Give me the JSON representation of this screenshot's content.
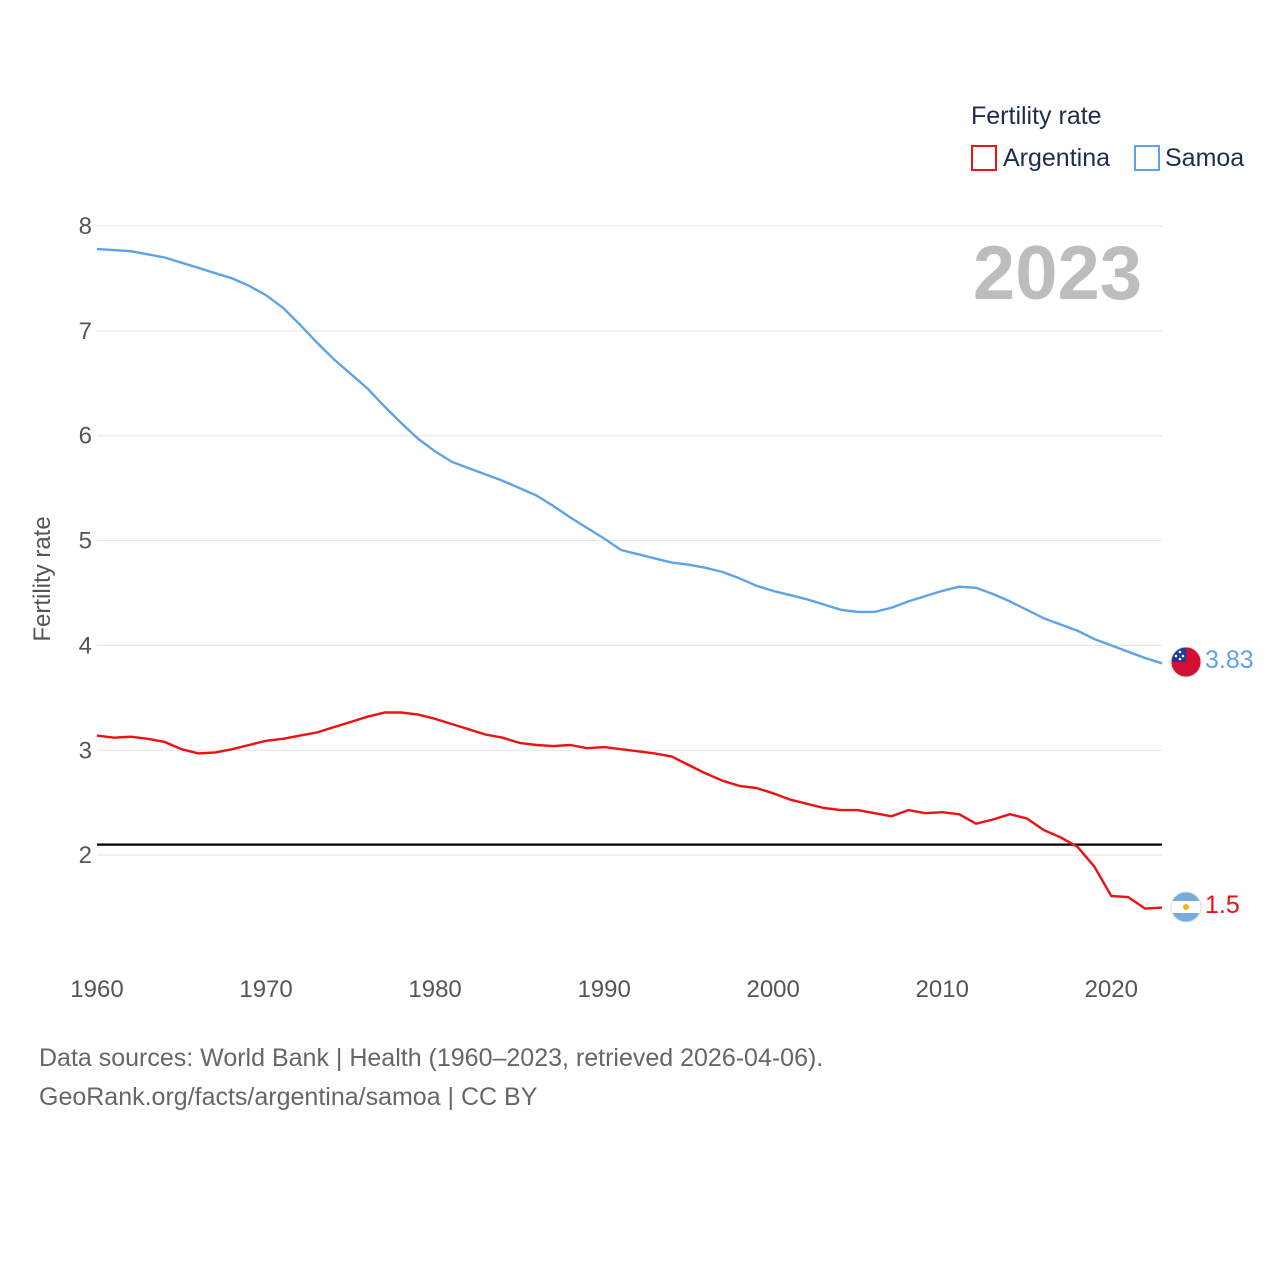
{
  "chart_data": {
    "type": "line",
    "title": "",
    "legend_title": "Fertility rate",
    "ylabel": "Fertility rate",
    "xlabel": "",
    "year_label": "2023",
    "xlim": [
      1960,
      2023
    ],
    "ylim": [
      1,
      8
    ],
    "y_ticks": [
      2,
      3,
      4,
      5,
      6,
      7,
      8
    ],
    "x_ticks": [
      1960,
      1970,
      1980,
      1990,
      2000,
      2010,
      2020
    ],
    "reference_line": {
      "value": 2.1,
      "color": "#000000"
    },
    "series": [
      {
        "name": "Argentina",
        "color": "#ee1111",
        "end_label": "1.5",
        "flag": "argentina-flag",
        "x": [
          1960,
          1961,
          1962,
          1963,
          1964,
          1965,
          1966,
          1967,
          1968,
          1969,
          1970,
          1971,
          1972,
          1973,
          1974,
          1975,
          1976,
          1977,
          1978,
          1979,
          1980,
          1981,
          1982,
          1983,
          1984,
          1985,
          1986,
          1987,
          1988,
          1989,
          1990,
          1991,
          1992,
          1993,
          1994,
          1995,
          1996,
          1997,
          1998,
          1999,
          2000,
          2001,
          2002,
          2003,
          2004,
          2005,
          2006,
          2007,
          2008,
          2009,
          2010,
          2011,
          2012,
          2013,
          2014,
          2015,
          2016,
          2017,
          2018,
          2019,
          2020,
          2021,
          2022,
          2023
        ],
        "values": [
          3.14,
          3.12,
          3.13,
          3.11,
          3.08,
          3.01,
          2.97,
          2.98,
          3.01,
          3.05,
          3.09,
          3.11,
          3.14,
          3.17,
          3.22,
          3.27,
          3.32,
          3.36,
          3.36,
          3.34,
          3.3,
          3.25,
          3.2,
          3.15,
          3.12,
          3.07,
          3.05,
          3.04,
          3.05,
          3.02,
          3.03,
          3.01,
          2.99,
          2.97,
          2.94,
          2.86,
          2.78,
          2.71,
          2.66,
          2.64,
          2.59,
          2.53,
          2.49,
          2.45,
          2.43,
          2.43,
          2.4,
          2.37,
          2.43,
          2.4,
          2.41,
          2.39,
          2.3,
          2.34,
          2.39,
          2.35,
          2.24,
          2.17,
          2.08,
          1.89,
          1.61,
          1.6,
          1.49,
          1.5
        ]
      },
      {
        "name": "Samoa",
        "color": "#5ea3e6",
        "end_label": "3.83",
        "flag": "samoa-flag",
        "x": [
          1960,
          1961,
          1962,
          1963,
          1964,
          1965,
          1966,
          1967,
          1968,
          1969,
          1970,
          1971,
          1972,
          1973,
          1974,
          1975,
          1976,
          1977,
          1978,
          1979,
          1980,
          1981,
          1982,
          1983,
          1984,
          1985,
          1986,
          1987,
          1988,
          1989,
          1990,
          1991,
          1992,
          1993,
          1994,
          1995,
          1996,
          1997,
          1998,
          1999,
          2000,
          2001,
          2002,
          2003,
          2004,
          2005,
          2006,
          2007,
          2008,
          2009,
          2010,
          2011,
          2012,
          2013,
          2014,
          2015,
          2016,
          2017,
          2018,
          2019,
          2020,
          2021,
          2022,
          2023
        ],
        "values": [
          7.78,
          7.77,
          7.76,
          7.73,
          7.7,
          7.65,
          7.6,
          7.55,
          7.5,
          7.43,
          7.34,
          7.22,
          7.06,
          6.89,
          6.73,
          6.59,
          6.45,
          6.28,
          6.12,
          5.97,
          5.85,
          5.75,
          5.69,
          5.63,
          5.57,
          5.5,
          5.43,
          5.33,
          5.22,
          5.12,
          5.02,
          4.91,
          4.87,
          4.83,
          4.79,
          4.77,
          4.74,
          4.7,
          4.64,
          4.57,
          4.52,
          4.48,
          4.44,
          4.39,
          4.34,
          4.32,
          4.32,
          4.36,
          4.42,
          4.47,
          4.52,
          4.56,
          4.55,
          4.49,
          4.42,
          4.34,
          4.26,
          4.2,
          4.14,
          4.06,
          4.0,
          3.94,
          3.88,
          3.83
        ]
      }
    ]
  },
  "footer": {
    "line1": "Data sources: World Bank | Health (1960–2023, retrieved 2026-04-06).",
    "line2": "GeoRank.org/facts/argentina/samoa | CC BY"
  }
}
